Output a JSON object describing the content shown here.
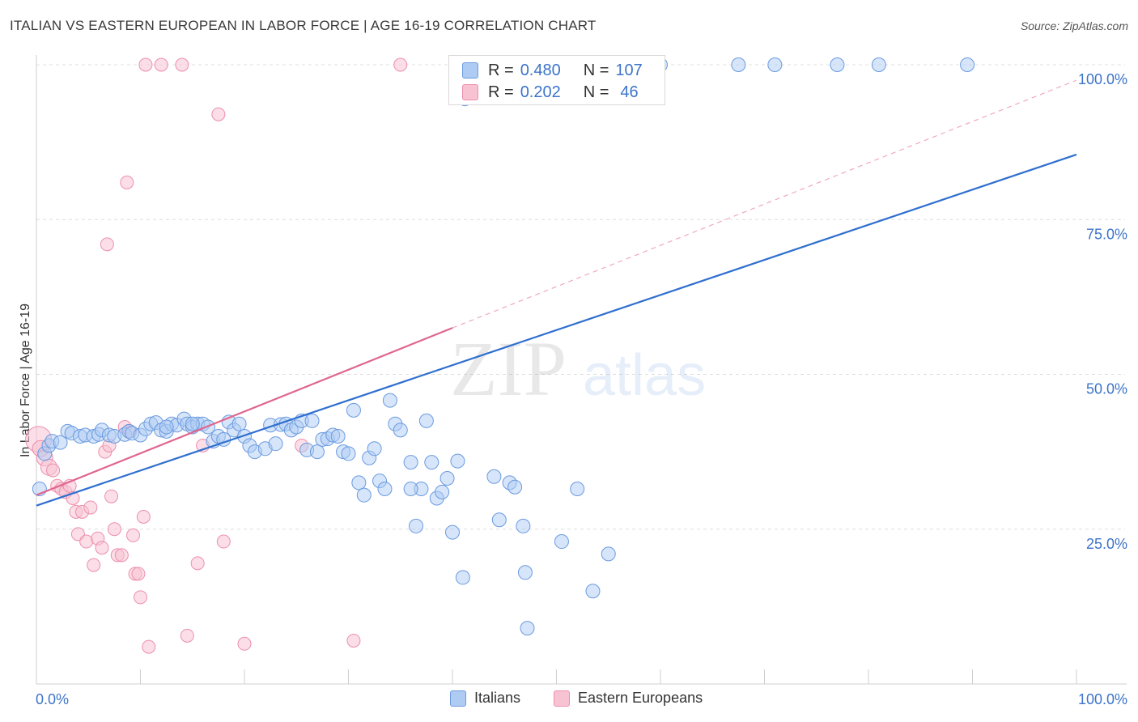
{
  "header": {
    "title": "ITALIAN VS EASTERN EUROPEAN IN LABOR FORCE | AGE 16-19 CORRELATION CHART",
    "source": "Source: ZipAtlas.com"
  },
  "legend": {
    "italians": {
      "r_label": "R =",
      "r_value": "0.480",
      "n_label": "N =",
      "n_value": "107"
    },
    "eastern": {
      "r_label": "R =",
      "r_value": "0.202",
      "n_label": "N =",
      "n_value": "46"
    }
  },
  "bottom_legend": {
    "italians": "Italians",
    "eastern": "Eastern Europeans"
  },
  "watermark": {
    "zip": "ZIP",
    "atlas": "atlas"
  },
  "chart_data": {
    "type": "scatter",
    "ylabel": "In Labor Force | Age 16-19",
    "xlim": [
      0,
      100
    ],
    "ylim": [
      0,
      100
    ],
    "x_tick_labels": {
      "left": "0.0%",
      "right": "100.0%"
    },
    "y_ticks": [
      {
        "value": 25,
        "label": "25.0%"
      },
      {
        "value": 50,
        "label": "50.0%"
      },
      {
        "value": 75,
        "label": "75.0%"
      },
      {
        "value": 100,
        "label": "100.0%"
      }
    ],
    "grid": true,
    "colors": {
      "italians": "#6b9be0",
      "italians_fill": "#aecbf3",
      "eastern": "#ec8fac",
      "eastern_fill": "#f7c3d3",
      "italians_line": "#2f6fcf",
      "eastern_line": "#e0668f"
    },
    "series": [
      {
        "name": "Italians",
        "trend": {
          "x": [
            0,
            100
          ],
          "y": [
            28.8,
            85.5
          ]
        },
        "points": [
          [
            0.3,
            31.5
          ],
          [
            0.8,
            37.2
          ],
          [
            1.2,
            38.5
          ],
          [
            1.5,
            39.2
          ],
          [
            2.3,
            39.0
          ],
          [
            3.0,
            40.8
          ],
          [
            3.4,
            40.5
          ],
          [
            4.2,
            40.0
          ],
          [
            4.7,
            40.2
          ],
          [
            5.5,
            40.0
          ],
          [
            6.0,
            40.3
          ],
          [
            6.3,
            41.0
          ],
          [
            7.0,
            40.2
          ],
          [
            7.5,
            40.0
          ],
          [
            8.5,
            40.3
          ],
          [
            8.9,
            40.8
          ],
          [
            9.2,
            40.5
          ],
          [
            10.0,
            40.2
          ],
          [
            10.5,
            41.2
          ],
          [
            11.0,
            42.0
          ],
          [
            11.5,
            42.2
          ],
          [
            12.0,
            41.0
          ],
          [
            12.5,
            40.8
          ],
          [
            13.0,
            42.0
          ],
          [
            13.5,
            41.8
          ],
          [
            14.2,
            42.8
          ],
          [
            14.5,
            42.0
          ],
          [
            15.0,
            41.5
          ],
          [
            15.5,
            42.0
          ],
          [
            16.0,
            42.0
          ],
          [
            16.5,
            41.5
          ],
          [
            17.0,
            39.2
          ],
          [
            17.5,
            40.0
          ],
          [
            18.0,
            39.5
          ],
          [
            18.5,
            42.3
          ],
          [
            19.0,
            41.0
          ],
          [
            19.5,
            42.0
          ],
          [
            20.0,
            40.0
          ],
          [
            20.5,
            38.5
          ],
          [
            21.0,
            37.5
          ],
          [
            22.0,
            38.0
          ],
          [
            22.5,
            41.8
          ],
          [
            23.0,
            38.8
          ],
          [
            23.5,
            41.9
          ],
          [
            24.0,
            42.0
          ],
          [
            24.5,
            41.0
          ],
          [
            25.0,
            41.5
          ],
          [
            25.5,
            42.5
          ],
          [
            26.0,
            37.8
          ],
          [
            26.5,
            42.5
          ],
          [
            27.0,
            37.5
          ],
          [
            27.5,
            39.5
          ],
          [
            28.0,
            39.6
          ],
          [
            28.5,
            40.2
          ],
          [
            29.0,
            40.0
          ],
          [
            29.5,
            37.5
          ],
          [
            30.0,
            37.2
          ],
          [
            30.5,
            44.2
          ],
          [
            31.0,
            32.5
          ],
          [
            31.5,
            30.5
          ],
          [
            32.0,
            36.5
          ],
          [
            32.5,
            38.0
          ],
          [
            33.0,
            32.8
          ],
          [
            33.5,
            31.5
          ],
          [
            34.0,
            45.8
          ],
          [
            34.5,
            42.0
          ],
          [
            35.0,
            41.0
          ],
          [
            36.0,
            35.8
          ],
          [
            36.5,
            25.5
          ],
          [
            37.0,
            31.5
          ],
          [
            37.5,
            42.5
          ],
          [
            38.0,
            35.8
          ],
          [
            38.5,
            30.0
          ],
          [
            39.0,
            31.0
          ],
          [
            39.5,
            33.2
          ],
          [
            40.0,
            24.5
          ],
          [
            40.5,
            36.0
          ],
          [
            41.0,
            17.2
          ],
          [
            41.2,
            94.5
          ],
          [
            42.0,
            100.0
          ],
          [
            43.0,
            100.0
          ],
          [
            44.0,
            33.5
          ],
          [
            44.5,
            26.5
          ],
          [
            45.5,
            32.5
          ],
          [
            46.0,
            31.8
          ],
          [
            46.5,
            100.0
          ],
          [
            46.8,
            25.5
          ],
          [
            47.0,
            18.0
          ],
          [
            47.2,
            9.0
          ],
          [
            48.0,
            100.0
          ],
          [
            49.0,
            100.0
          ],
          [
            50.0,
            100.0
          ],
          [
            50.5,
            23.0
          ],
          [
            52.0,
            31.5
          ],
          [
            53.0,
            100.0
          ],
          [
            53.5,
            15.0
          ],
          [
            55.0,
            21.0
          ],
          [
            56.0,
            100.0
          ],
          [
            60.0,
            100.0
          ],
          [
            67.5,
            100.0
          ],
          [
            71.0,
            100.0
          ],
          [
            77.0,
            100.0
          ],
          [
            81.0,
            100.0
          ],
          [
            89.5,
            100.0
          ],
          [
            36.0,
            31.5
          ],
          [
            15.0,
            42.0
          ],
          [
            12.5,
            41.5
          ]
        ]
      },
      {
        "name": "Eastern Europeans",
        "trend": {
          "x": [
            0,
            40
          ],
          "y": [
            30.5,
            57.5
          ]
        },
        "trend_dashed": {
          "x": [
            40,
            100
          ],
          "y": [
            57.5,
            97.5
          ]
        },
        "points": [
          [
            0.2,
            39.5
          ],
          [
            0.4,
            38.0
          ],
          [
            0.8,
            36.5
          ],
          [
            1.2,
            35.0
          ],
          [
            1.6,
            34.5
          ],
          [
            2.0,
            32.0
          ],
          [
            2.4,
            31.5
          ],
          [
            2.8,
            31.0
          ],
          [
            3.2,
            32.0
          ],
          [
            3.5,
            30.0
          ],
          [
            3.8,
            27.8
          ],
          [
            4.0,
            24.2
          ],
          [
            4.4,
            27.8
          ],
          [
            4.8,
            23.0
          ],
          [
            5.2,
            28.5
          ],
          [
            5.5,
            19.2
          ],
          [
            5.9,
            23.5
          ],
          [
            6.3,
            22.0
          ],
          [
            6.6,
            37.5
          ],
          [
            6.8,
            71.0
          ],
          [
            7.0,
            38.5
          ],
          [
            7.2,
            30.3
          ],
          [
            7.5,
            25.0
          ],
          [
            7.8,
            20.8
          ],
          [
            8.2,
            20.8
          ],
          [
            8.5,
            41.5
          ],
          [
            8.7,
            81.0
          ],
          [
            9.0,
            40.8
          ],
          [
            9.3,
            24.0
          ],
          [
            9.5,
            17.8
          ],
          [
            9.8,
            17.8
          ],
          [
            10.0,
            14.0
          ],
          [
            10.3,
            27.0
          ],
          [
            10.8,
            6.0
          ],
          [
            10.5,
            100.0
          ],
          [
            12.0,
            100.0
          ],
          [
            14.0,
            100.0
          ],
          [
            14.5,
            7.8
          ],
          [
            15.5,
            19.5
          ],
          [
            16.0,
            38.5
          ],
          [
            17.5,
            92.0
          ],
          [
            18.0,
            23.0
          ],
          [
            20.0,
            6.5
          ],
          [
            25.5,
            38.5
          ],
          [
            30.5,
            7.0
          ],
          [
            35.0,
            100.0
          ]
        ]
      }
    ]
  }
}
